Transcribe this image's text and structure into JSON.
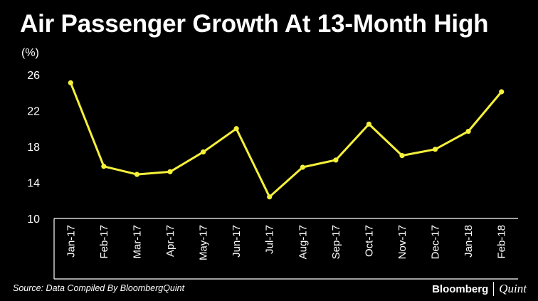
{
  "chart_data": {
    "type": "line",
    "title": "Air Passenger Growth At 13-Month High",
    "ylabel": "(%)",
    "xlabel": "",
    "categories": [
      "Jan-17",
      "Feb-17",
      "Mar-17",
      "Apr-17",
      "May-17",
      "Jun-17",
      "Jul-17",
      "Aug-17",
      "Sep-17",
      "Oct-17",
      "Nov-17",
      "Dec-17",
      "Jan-18",
      "Feb-18"
    ],
    "values": [
      25.1,
      15.8,
      14.9,
      15.2,
      17.4,
      20.0,
      12.4,
      15.7,
      16.5,
      20.5,
      17.0,
      17.7,
      19.7,
      24.1
    ],
    "ylim": [
      10,
      26
    ],
    "yticks": [
      "26",
      "22",
      "18",
      "14",
      "10"
    ],
    "line_color": "#f5f03a",
    "grid": false,
    "legend": "none"
  },
  "source": "Source: Data Compiled By BloombergQuint",
  "brand": {
    "name": "Bloomberg",
    "sub": "Quint"
  }
}
